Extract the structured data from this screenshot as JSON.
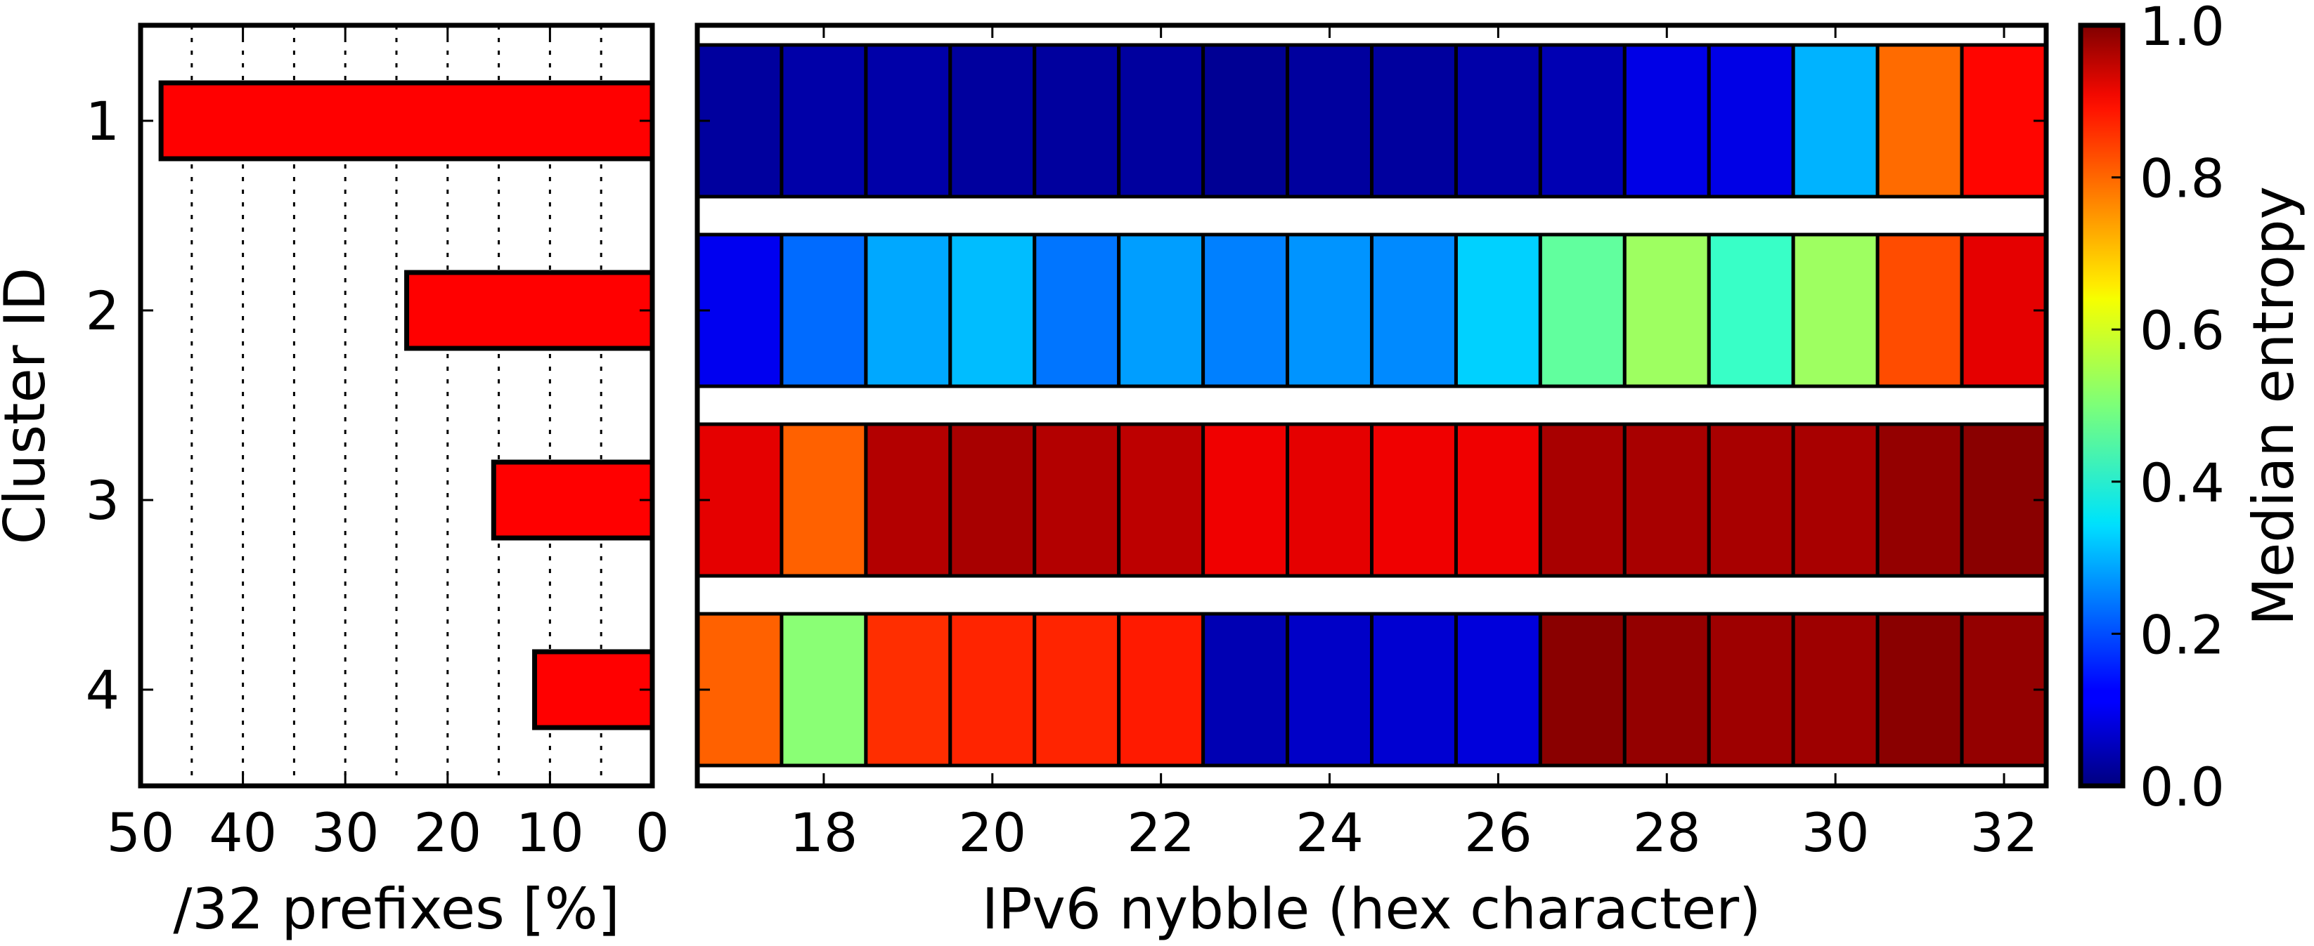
{
  "chart_data": [
    {
      "type": "bar",
      "orientation": "horizontal",
      "categories": [
        "1",
        "2",
        "3",
        "4"
      ],
      "values": [
        48,
        24,
        15.5,
        11.5
      ],
      "xlabel": "/32 prefixes [%]",
      "ylabel": "Cluster ID",
      "xlim": [
        50,
        0
      ],
      "xticks": [
        "50",
        "40",
        "30",
        "20",
        "10",
        "0"
      ],
      "grid": "vertical dotted",
      "color": "#ff0000"
    },
    {
      "type": "heatmap",
      "xlabel": "IPv6 nybble (hex character)",
      "x": [
        17,
        18,
        19,
        20,
        21,
        22,
        23,
        24,
        25,
        26,
        27,
        28,
        29,
        30,
        31,
        32
      ],
      "xticks": [
        "18",
        "20",
        "22",
        "24",
        "26",
        "28",
        "30",
        "32"
      ],
      "rows": [
        "1",
        "2",
        "3",
        "4"
      ],
      "values": [
        [
          0.03,
          0.04,
          0.04,
          0.03,
          0.03,
          0.03,
          0.02,
          0.03,
          0.03,
          0.04,
          0.05,
          0.1,
          0.1,
          0.3,
          0.77,
          0.87
        ],
        [
          0.11,
          0.23,
          0.29,
          0.31,
          0.24,
          0.28,
          0.25,
          0.27,
          0.26,
          0.33,
          0.47,
          0.53,
          0.43,
          0.53,
          0.8,
          0.9
        ],
        [
          0.9,
          0.78,
          0.95,
          0.96,
          0.95,
          0.94,
          0.89,
          0.9,
          0.89,
          0.89,
          0.96,
          0.96,
          0.96,
          0.96,
          0.98,
          0.99
        ],
        [
          0.78,
          0.51,
          0.83,
          0.84,
          0.84,
          0.85,
          0.05,
          0.07,
          0.08,
          0.09,
          0.99,
          0.98,
          0.97,
          0.97,
          0.99,
          0.98
        ]
      ],
      "colormap": "jet",
      "colorbar": {
        "label": "Median entropy",
        "range": [
          0.0,
          1.0
        ],
        "ticks": [
          "0.0",
          "0.2",
          "0.4",
          "0.6",
          "0.8",
          "1.0"
        ]
      }
    }
  ]
}
